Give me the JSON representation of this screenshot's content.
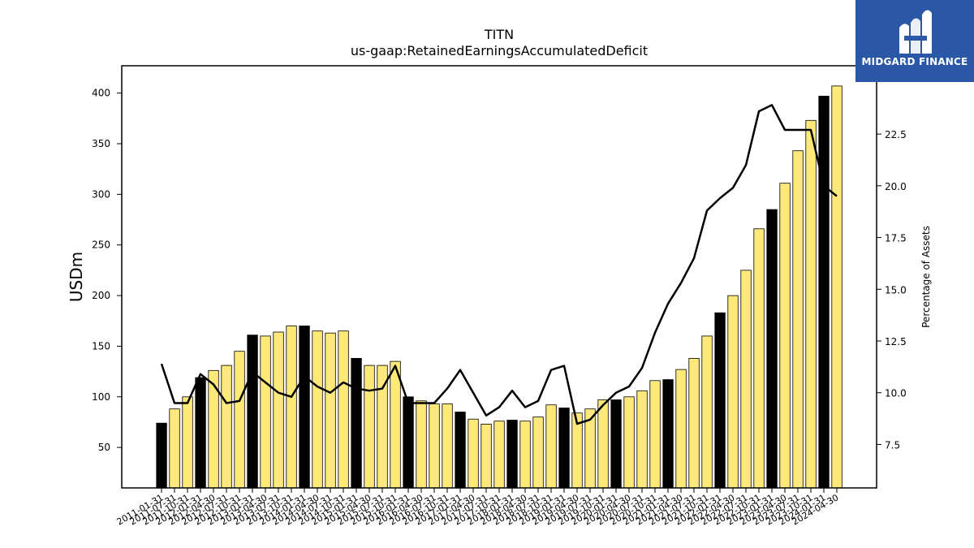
{
  "chart_data": {
    "type": "bar",
    "title": "TITN",
    "subtitle": "us-gaap:RetainedEarningsAccumulatedDeficit",
    "ylabel": "USDm",
    "y2label": "Percentage of Assets",
    "ylim": [
      10,
      427
    ],
    "y2lim": [
      5.4,
      25.8
    ],
    "yticks": [
      50,
      100,
      150,
      200,
      250,
      300,
      350,
      400
    ],
    "y2ticks": [
      "7.5",
      "10.0",
      "12.5",
      "15.0",
      "17.5",
      "20.0",
      "22.5"
    ],
    "colors": {
      "annual": "#000000",
      "quarterly": "#ffe97a",
      "line": "#000000"
    },
    "categories": [
      "2011-01-31",
      "2011-07-31",
      "2011-10-31",
      "2012-01-31",
      "2012-04-30",
      "2012-07-31",
      "2012-10-31",
      "2013-01-31",
      "2013-04-30",
      "2013-07-31",
      "2013-10-31",
      "2014-01-31",
      "2014-04-30",
      "2014-07-31",
      "2014-10-31",
      "2015-01-31",
      "2015-04-30",
      "2015-07-31",
      "2015-10-31",
      "2016-01-31",
      "2016-04-30",
      "2016-07-31",
      "2016-10-31",
      "2017-01-31",
      "2017-04-30",
      "2017-07-31",
      "2017-10-31",
      "2018-01-31",
      "2018-04-30",
      "2018-07-31",
      "2018-10-31",
      "2019-01-31",
      "2019-04-30",
      "2019-07-31",
      "2019-10-31",
      "2020-01-31",
      "2020-04-30",
      "2020-07-31",
      "2020-10-31",
      "2021-01-31",
      "2021-04-30",
      "2021-07-31",
      "2021-10-31",
      "2022-01-31",
      "2022-04-30",
      "2022-07-31",
      "2022-10-31",
      "2023-01-31",
      "2023-04-30",
      "2023-07-31",
      "2023-10-31",
      "2024-01-31",
      "2024-04-30"
    ],
    "series": [
      {
        "values": [
          74,
          88,
          100,
          119,
          126,
          131,
          145,
          161,
          160,
          164,
          170,
          170,
          165,
          163,
          165,
          138,
          131,
          131,
          135,
          100,
          96,
          93,
          93,
          85,
          78,
          73,
          76,
          77,
          76,
          80,
          92,
          89,
          84,
          88,
          97,
          97,
          100,
          106,
          116,
          117,
          127,
          138,
          160,
          183,
          200,
          225,
          266,
          285,
          311,
          343,
          373,
          397,
          407
        ],
        "annual": [
          true,
          false,
          false,
          true,
          false,
          false,
          false,
          true,
          false,
          false,
          false,
          true,
          false,
          false,
          false,
          true,
          false,
          false,
          false,
          true,
          false,
          false,
          false,
          true,
          false,
          false,
          false,
          true,
          false,
          false,
          false,
          true,
          false,
          false,
          false,
          true,
          false,
          false,
          false,
          true,
          false,
          false,
          false,
          true,
          false,
          false,
          false,
          true,
          false,
          false,
          false,
          true,
          false
        ]
      },
      {
        "values": [
          11.4,
          9.5,
          9.5,
          10.9,
          10.4,
          9.5,
          9.6,
          11.0,
          10.5,
          10.0,
          9.8,
          10.8,
          10.3,
          10.0,
          10.5,
          10.2,
          10.1,
          10.2,
          11.3,
          9.5,
          9.5,
          9.5,
          10.2,
          11.1,
          10.0,
          8.9,
          9.3,
          10.1,
          9.3,
          9.6,
          11.1,
          11.3,
          8.5,
          8.7,
          9.4,
          10.0,
          10.3,
          11.2,
          12.9,
          14.3,
          15.3,
          16.5,
          18.8,
          19.4,
          19.9,
          21.0,
          23.6,
          23.9,
          22.7,
          22.7,
          22.7,
          20.0,
          19.5
        ]
      }
    ]
  },
  "logo": {
    "text": "MIDGARD FINANCE",
    "icon": "midgard-logo-mark"
  }
}
